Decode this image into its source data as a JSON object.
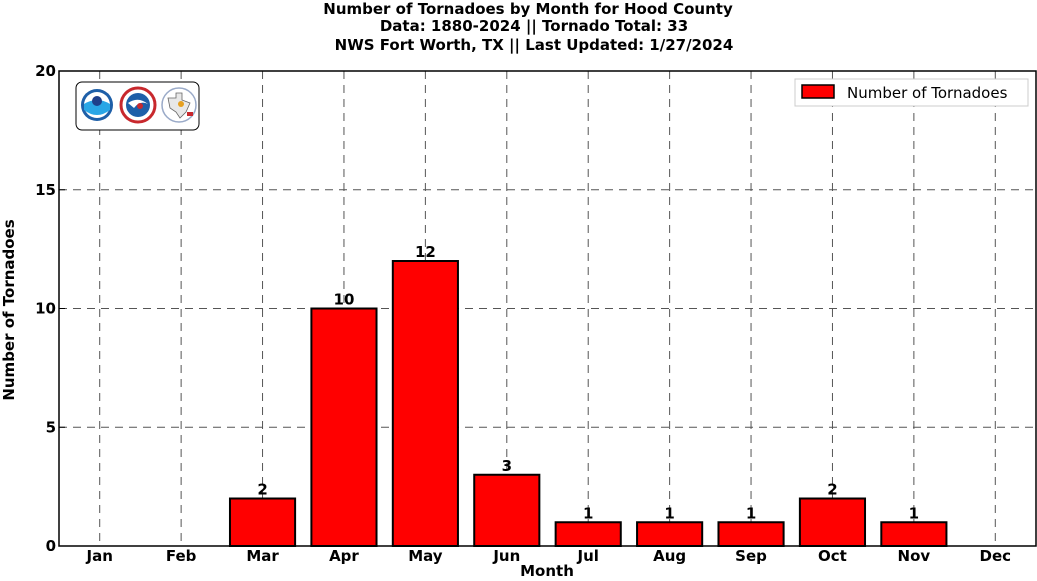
{
  "chart_data": {
    "type": "bar",
    "title_lines": [
      "Number of Tornadoes by Month for Hood County",
      "Data: 1880-2024 || Tornado Total: 33",
      "NWS Fort Worth, TX || Last Updated: 1/27/2024"
    ],
    "xlabel": "Month",
    "ylabel": "Number of Tornadoes",
    "categories": [
      "Jan",
      "Feb",
      "Mar",
      "Apr",
      "May",
      "Jun",
      "Jul",
      "Aug",
      "Sep",
      "Oct",
      "Nov",
      "Dec"
    ],
    "series": [
      {
        "name": "Number of Tornadoes",
        "values": [
          0,
          0,
          2,
          10,
          12,
          3,
          1,
          1,
          1,
          2,
          1,
          0
        ],
        "color": "#ff0000"
      }
    ],
    "data_labels": [
      "",
      "",
      "2",
      "10",
      "12",
      "3",
      "1",
      "1",
      "1",
      "2",
      "1",
      ""
    ],
    "ylim": [
      0,
      20
    ],
    "yticks": [
      0,
      5,
      10,
      15,
      20
    ],
    "grid": true,
    "legend_position": "top-right",
    "logos": [
      "noaa-logo",
      "nws-logo",
      "nws-fort-worth-logo"
    ]
  }
}
